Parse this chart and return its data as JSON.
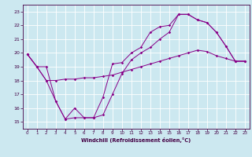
{
  "xlabel": "Windchill (Refroidissement éolien,°C)",
  "bg_color": "#cce8f0",
  "line_color": "#880088",
  "grid_color": "#ffffff",
  "xlim": [
    -0.5,
    23.5
  ],
  "ylim": [
    14.5,
    23.5
  ],
  "yticks": [
    15,
    16,
    17,
    18,
    19,
    20,
    21,
    22,
    23
  ],
  "xticks": [
    0,
    1,
    2,
    3,
    4,
    5,
    6,
    7,
    8,
    9,
    10,
    11,
    12,
    13,
    14,
    15,
    16,
    17,
    18,
    19,
    20,
    21,
    22,
    23
  ],
  "s1": [
    19.9,
    19.0,
    19.0,
    16.5,
    15.2,
    16.0,
    15.3,
    15.3,
    16.8,
    19.2,
    19.3,
    20.0,
    20.4,
    21.5,
    21.9,
    22.0,
    22.8,
    22.8,
    22.4,
    22.2,
    21.5,
    20.5,
    19.4,
    19.4
  ],
  "s2": [
    19.9,
    19.0,
    18.0,
    18.0,
    18.1,
    18.1,
    18.2,
    18.2,
    18.3,
    18.4,
    18.6,
    18.8,
    19.0,
    19.2,
    19.4,
    19.6,
    19.8,
    20.0,
    20.2,
    20.1,
    19.8,
    19.6,
    19.4,
    19.4
  ],
  "s3": [
    19.9,
    19.0,
    18.0,
    16.5,
    15.2,
    15.3,
    15.3,
    15.3,
    15.5,
    17.0,
    18.5,
    19.5,
    20.0,
    20.4,
    21.0,
    21.5,
    22.8,
    22.8,
    22.4,
    22.2,
    21.5,
    20.5,
    19.4,
    19.4
  ]
}
